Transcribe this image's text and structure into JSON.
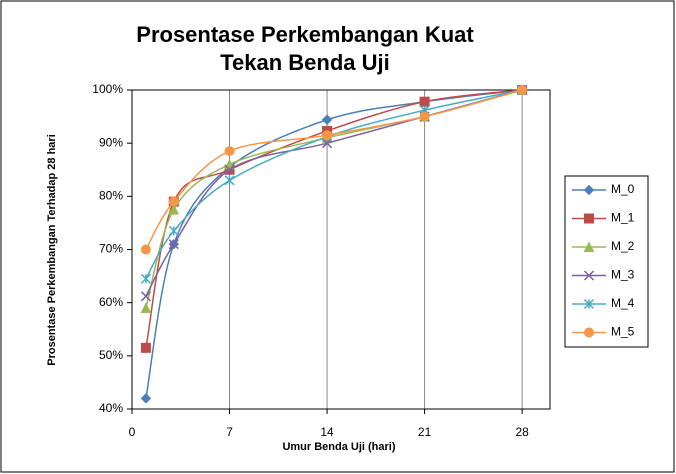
{
  "chart_data": {
    "type": "line",
    "title": [
      "Prosentase Perkembangan Kuat",
      "Tekan Benda Uji"
    ],
    "x_label": "Umur Benda Uji (hari)",
    "y_label": "Prosentase Perkembangan Terhadap 28 hari",
    "x": [
      1,
      3,
      7,
      14,
      21,
      28
    ],
    "xlim": [
      0,
      30
    ],
    "xticks": [
      0,
      7,
      14,
      21,
      28
    ],
    "ylim": [
      40,
      100
    ],
    "yticks": [
      {
        "value": 40,
        "label": "40%"
      },
      {
        "value": 50,
        "label": "50%"
      },
      {
        "value": 60,
        "label": "60%"
      },
      {
        "value": 70,
        "label": "70%"
      },
      {
        "value": 80,
        "label": "80%"
      },
      {
        "value": 90,
        "label": "90%"
      },
      {
        "value": 100,
        "label": "100%"
      }
    ],
    "grid": "x",
    "smooth": true,
    "legend": "right",
    "series": [
      {
        "name": "M_0",
        "color": "#4a7ebb",
        "marker": "diamond",
        "values": [
          42,
          71,
          85.5,
          94.4,
          97.8,
          100
        ]
      },
      {
        "name": "M_1",
        "color": "#be4b48",
        "marker": "square",
        "values": [
          51.5,
          79,
          85,
          92.3,
          97.8,
          100
        ]
      },
      {
        "name": "M_2",
        "color": "#98b954",
        "marker": "triangle",
        "values": [
          59,
          77.5,
          86,
          91,
          95,
          100
        ]
      },
      {
        "name": "M_3",
        "color": "#7d60a0",
        "marker": "x",
        "values": [
          61.2,
          71,
          85,
          90,
          95,
          100
        ]
      },
      {
        "name": "M_4",
        "color": "#46aac5",
        "marker": "star",
        "values": [
          64.5,
          73.5,
          83,
          91.2,
          96.2,
          100
        ]
      },
      {
        "name": "M_5",
        "color": "#f79646",
        "marker": "circle",
        "values": [
          70,
          79,
          88.5,
          91.5,
          95,
          100
        ]
      }
    ]
  }
}
